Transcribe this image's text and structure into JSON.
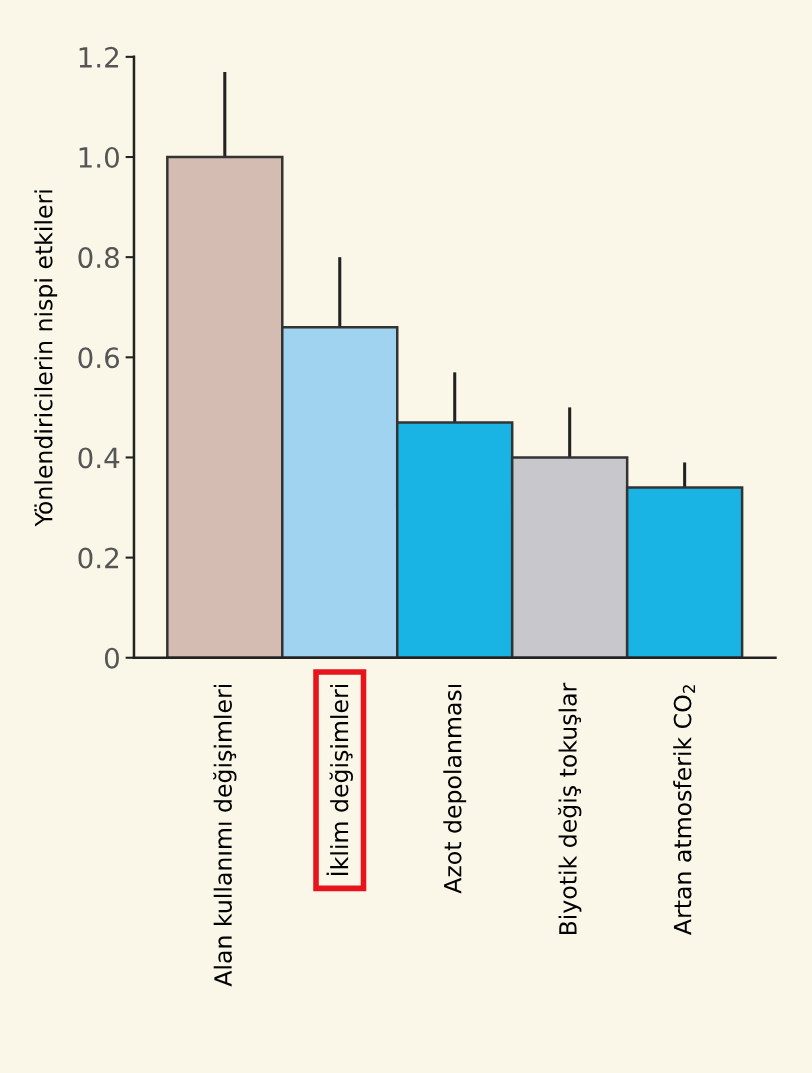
{
  "chart_data": {
    "type": "bar",
    "ylabel": "Yönlendiricilerin nispi etkileri",
    "categories": [
      "Alan kullanımı değişimleri",
      "İklim değişimleri",
      "Azot depolanması",
      "Biyotik değiş tokuşlar",
      "Artan atmosferik CO$_{2}$"
    ],
    "values": [
      1.0,
      0.66,
      0.47,
      0.4,
      0.34
    ],
    "colors": [
      "#d4bcb3",
      "#9fd3ef",
      "#1ab4e4",
      "#c8c8cc",
      "#1ab4e4"
    ],
    "errors": [
      [
        1.0,
        1.17
      ],
      [
        0.66,
        0.8
      ],
      [
        0.47,
        0.57
      ],
      [
        0.4,
        0.5
      ],
      [
        0.34,
        0.39
      ]
    ],
    "ylim": [
      0,
      1.2
    ],
    "yticks": [
      0,
      0.2,
      0.4,
      0.6,
      0.8,
      {
        "value": 1.0,
        "label": "1.0"
      },
      1.2
    ],
    "grid": false,
    "legend": false
  }
}
